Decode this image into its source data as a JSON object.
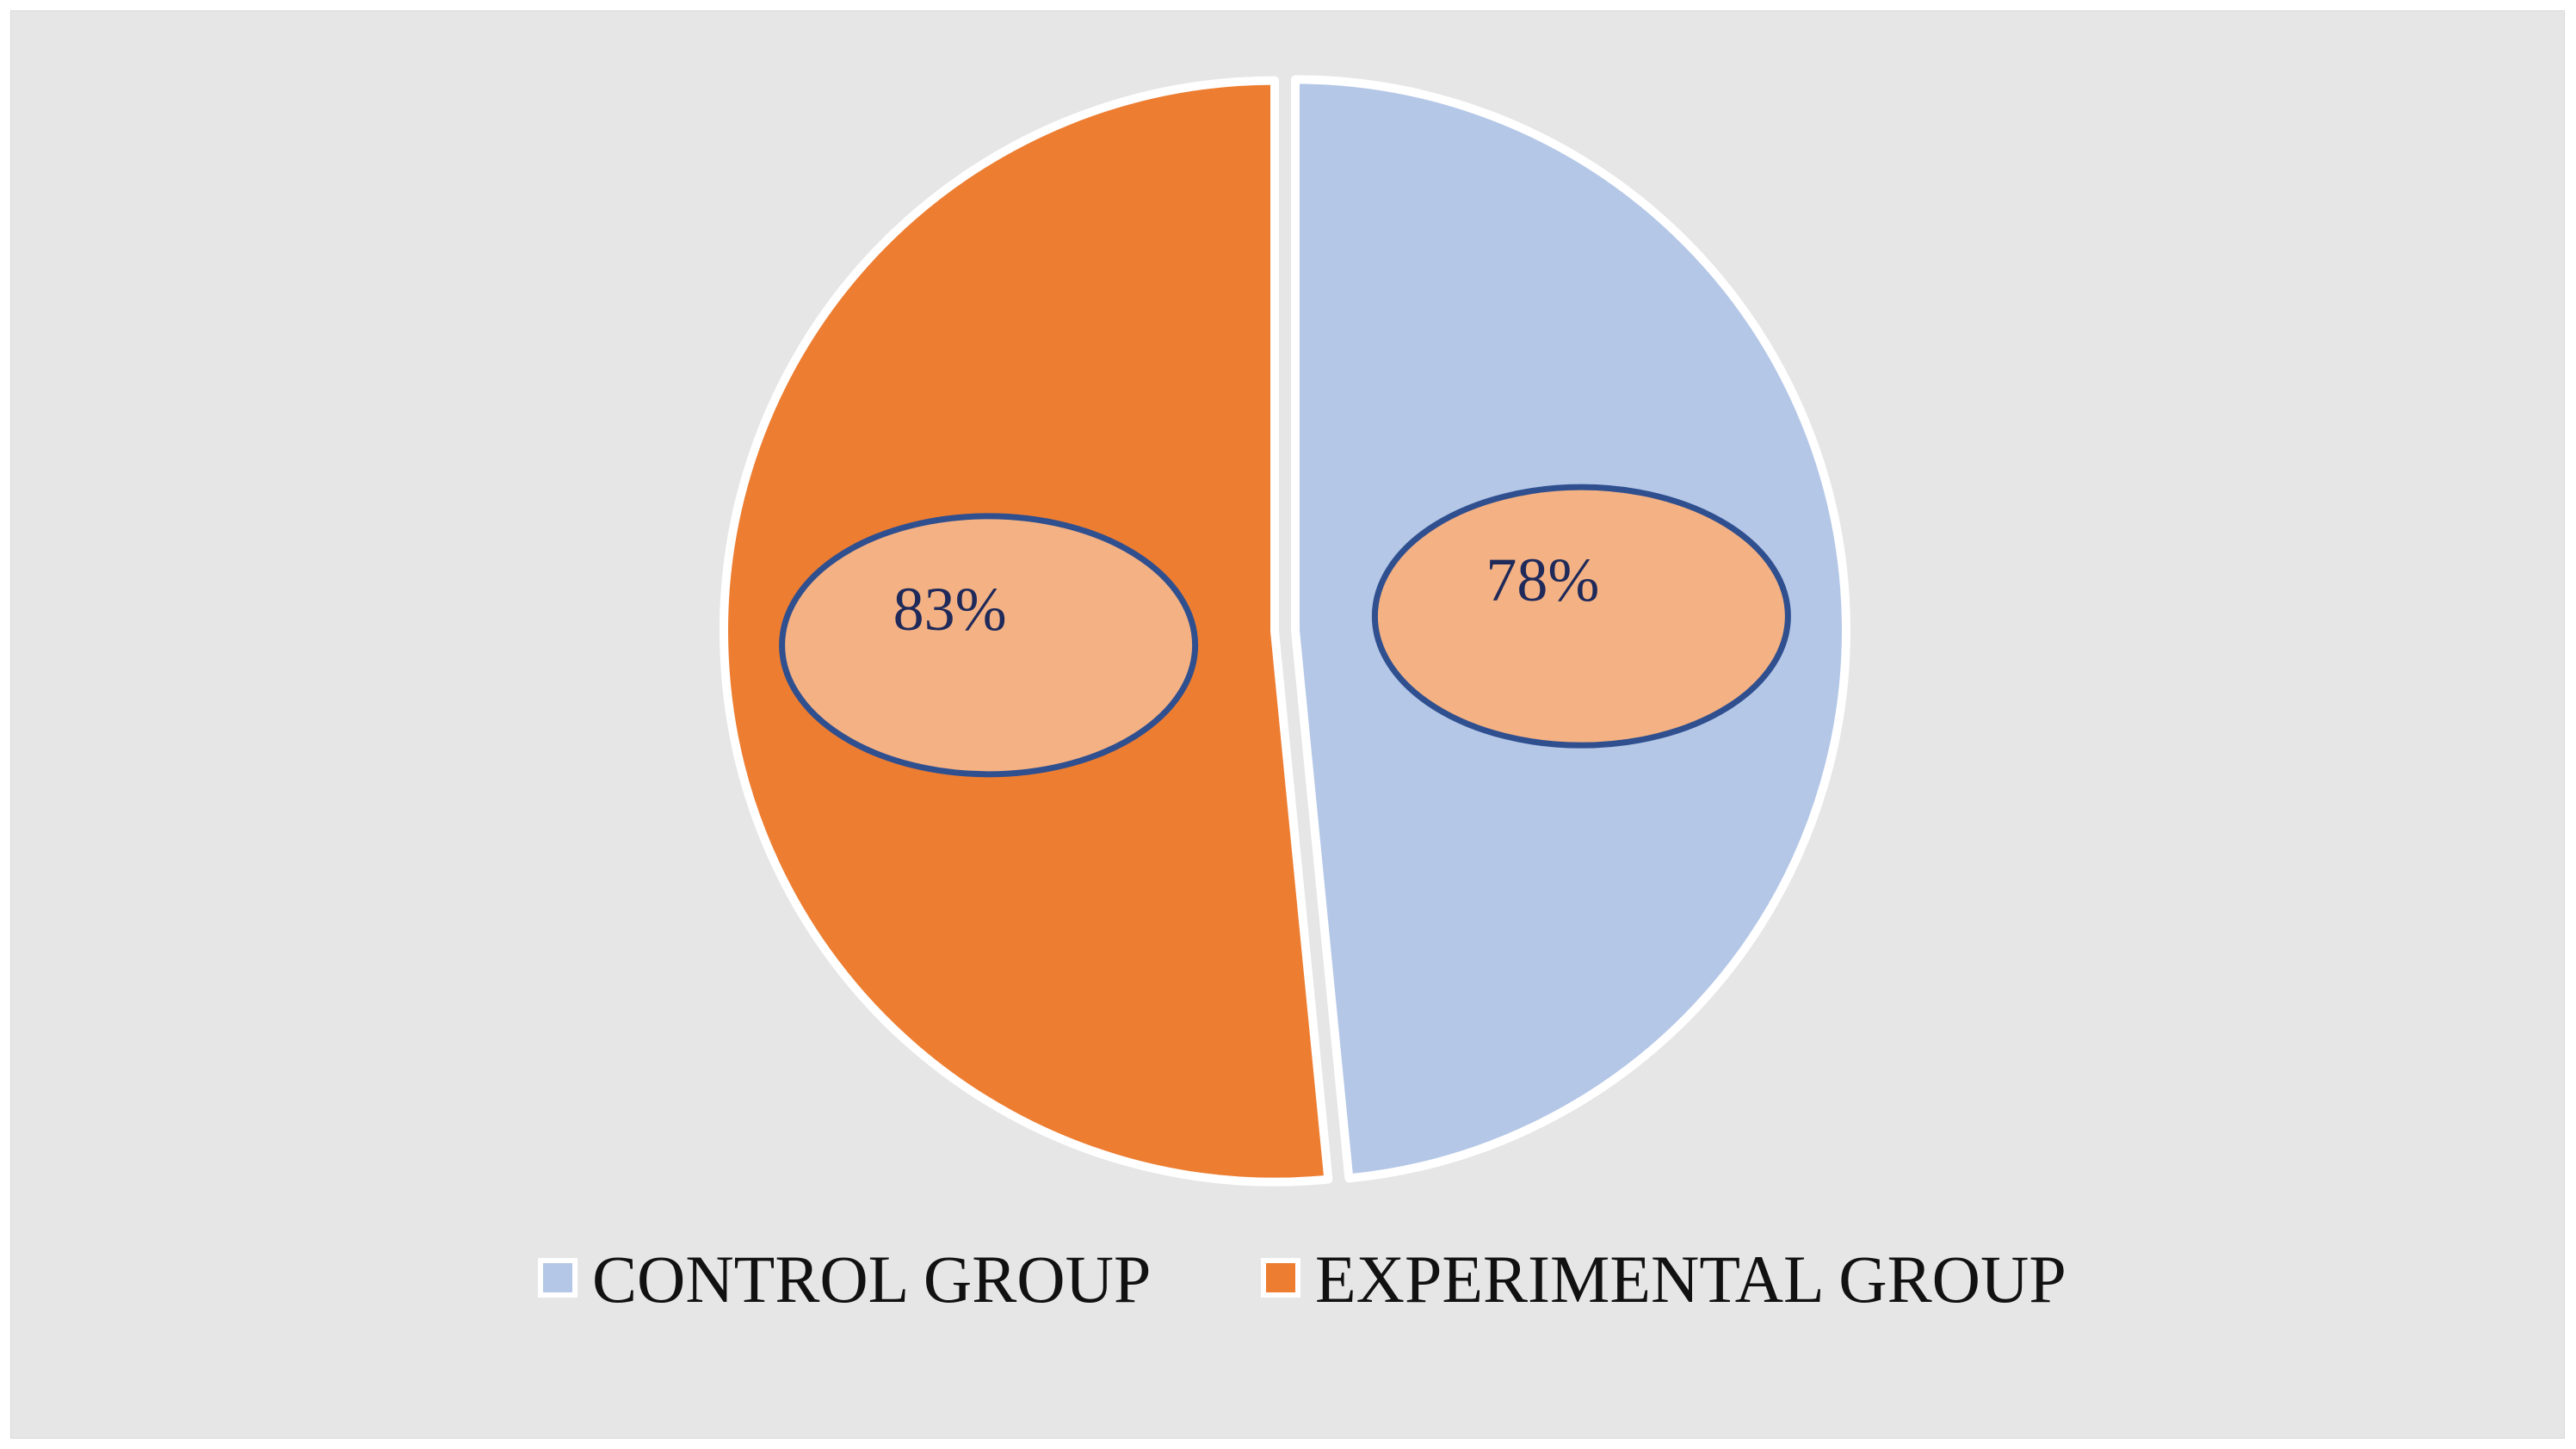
{
  "chart_data": {
    "type": "pie",
    "title": "",
    "categories": [
      "CONTROL GROUP",
      "EXPERIMENTAL GROUP"
    ],
    "values": [
      78,
      83
    ],
    "data_labels": [
      "78%",
      "83%"
    ],
    "colors": [
      "#b4c7e7",
      "#ed7d31"
    ],
    "label_bubble_fill": "#f4b183",
    "label_bubble_stroke": "#2f4f8f",
    "background": "#e6e6e6",
    "legend_position": "bottom"
  }
}
